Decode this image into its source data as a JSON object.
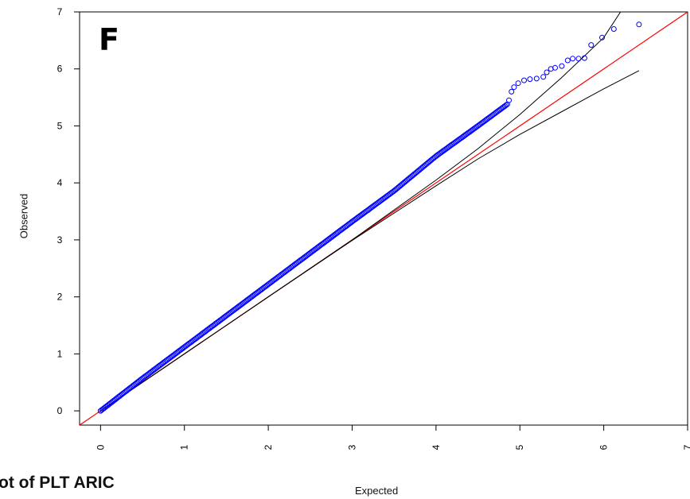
{
  "panel_label": "F",
  "plot_title": "ot of PLT ARIC",
  "chart_data": {
    "type": "scatter",
    "xlabel": "Expected",
    "ylabel": "Observed",
    "xlim": [
      -0.25,
      7.0
    ],
    "ylim": [
      -0.25,
      7.0
    ],
    "x_ticks": [
      "0",
      "1",
      "2",
      "3",
      "4",
      "5",
      "6",
      "7"
    ],
    "y_ticks": [
      "0",
      "1",
      "2",
      "3",
      "4",
      "5",
      "6",
      "7"
    ],
    "colors": {
      "points": "#0000ff",
      "reference_line": "#ff0000",
      "confidence_band": "#000000"
    },
    "observed_points": [
      [
        0.0,
        0.0
      ],
      [
        0.5,
        0.57
      ],
      [
        1.0,
        1.12
      ],
      [
        1.5,
        1.67
      ],
      [
        2.0,
        2.22
      ],
      [
        2.5,
        2.77
      ],
      [
        3.0,
        3.32
      ],
      [
        3.5,
        3.86
      ],
      [
        4.0,
        4.47
      ],
      [
        4.5,
        5.0
      ],
      [
        4.85,
        5.38
      ],
      [
        4.87,
        5.45
      ],
      [
        4.9,
        5.6
      ],
      [
        4.93,
        5.68
      ],
      [
        4.98,
        5.75
      ],
      [
        5.05,
        5.8
      ],
      [
        5.12,
        5.82
      ],
      [
        5.2,
        5.83
      ],
      [
        5.28,
        5.86
      ],
      [
        5.32,
        5.94
      ],
      [
        5.37,
        6.0
      ],
      [
        5.42,
        6.02
      ],
      [
        5.5,
        6.05
      ],
      [
        5.57,
        6.15
      ],
      [
        5.63,
        6.18
      ],
      [
        5.7,
        6.18
      ],
      [
        5.77,
        6.19
      ],
      [
        5.85,
        6.42
      ],
      [
        5.98,
        6.55
      ],
      [
        6.12,
        6.7
      ],
      [
        6.42,
        6.78
      ]
    ],
    "reference_line": {
      "x": [
        -0.25,
        7.0
      ],
      "y": [
        -0.25,
        7.0
      ]
    },
    "confidence_band_upper": {
      "x": [
        0.0,
        2.0,
        3.0,
        4.0,
        4.5,
        5.0,
        5.5,
        6.0,
        6.2
      ],
      "y": [
        0.0,
        2.0,
        3.0,
        4.05,
        4.6,
        5.2,
        5.85,
        6.55,
        7.0
      ]
    },
    "confidence_band_lower": {
      "x": [
        0.0,
        2.0,
        3.0,
        4.0,
        4.5,
        5.0,
        5.5,
        6.0,
        6.42
      ],
      "y": [
        0.0,
        2.0,
        2.99,
        3.95,
        4.42,
        4.85,
        5.25,
        5.65,
        5.97
      ]
    }
  }
}
